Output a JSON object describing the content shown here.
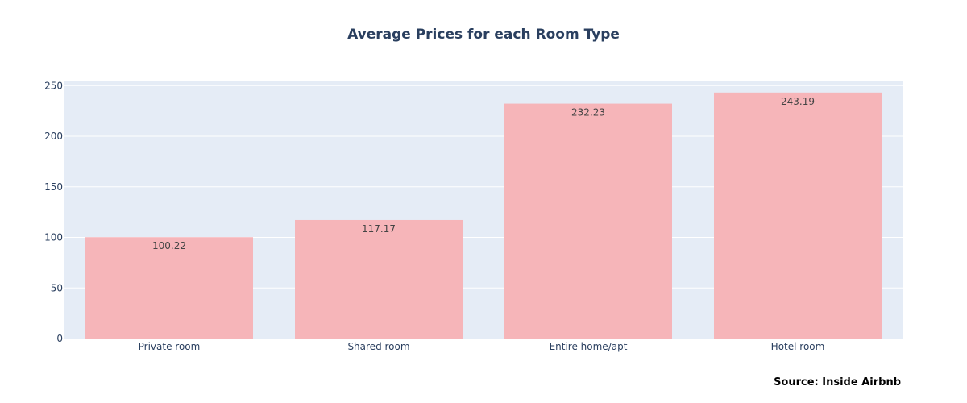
{
  "chart_data": {
    "type": "bar",
    "title": "Average Prices for each Room Type",
    "annotation": "Source: Inside Airbnb",
    "categories": [
      "Private room",
      "Shared room",
      "Entire home/apt",
      "Hotel room"
    ],
    "values": [
      100.22,
      117.17,
      232.23,
      243.19
    ],
    "value_labels": [
      "100.22",
      "117.17",
      "232.23",
      "243.19"
    ],
    "xlabel": "",
    "ylabel": "",
    "ylim": [
      0,
      255
    ],
    "yticks": [
      0,
      50,
      100,
      150,
      200,
      250
    ],
    "grid": true,
    "legend": "none"
  },
  "colors": {
    "bar": "#f6b5b9",
    "plot_background": "#e5ecf6",
    "grid": "#ffffff",
    "tick_text": "#2a3f5f",
    "bar_label_text": "#444444",
    "title_text": "#2a3f5f"
  }
}
